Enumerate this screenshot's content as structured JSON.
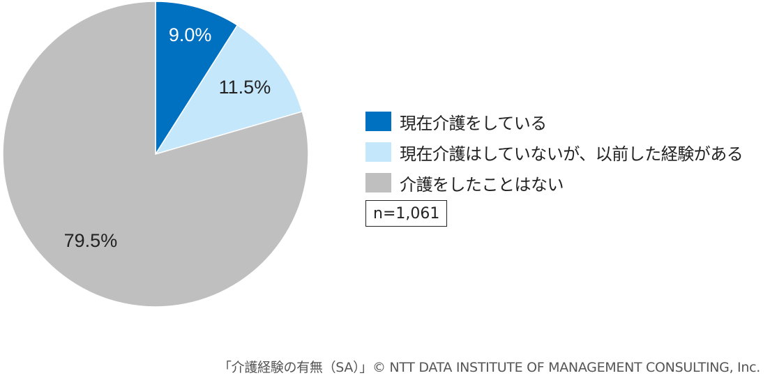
{
  "chart_data": {
    "type": "pie",
    "title": "",
    "categories": [
      "現在介護をしている",
      "現在介護はしていないが、以前した経験がある",
      "介護をしたことはない"
    ],
    "values": [
      9.0,
      11.5,
      79.5
    ],
    "data_labels": [
      "9.0%",
      "11.5%",
      "79.5%"
    ],
    "colors": [
      "#0070c0",
      "#c5e7fb",
      "#bfbfbf"
    ],
    "label_colors": [
      "#ffffff",
      "#222222",
      "#222222"
    ],
    "start_angle": "12 o'clock",
    "direction": "clockwise",
    "legend_position": "right"
  },
  "legend": {
    "items": [
      {
        "label": "現在介護をしている",
        "color": "#0070c0"
      },
      {
        "label": "現在介護はしていないが、以前した経験がある",
        "color": "#c5e7fb"
      },
      {
        "label": "介護をしたことはない",
        "color": "#bfbfbf"
      }
    ]
  },
  "sample_size": "n=1,061",
  "footer": "「介護経験の有無（SA）」© NTT DATA INSTITUTE OF MANAGEMENT CONSULTING, Inc."
}
